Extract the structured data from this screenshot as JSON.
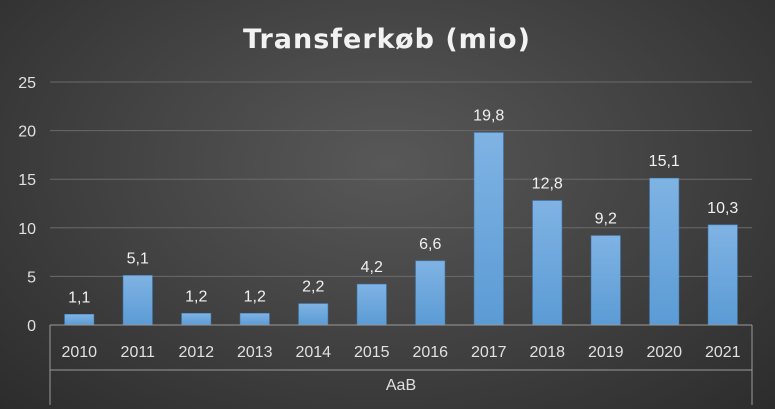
{
  "chart_data": {
    "type": "bar",
    "title": "Transferkøb (mio)",
    "group_label": "AaB",
    "categories": [
      "2010",
      "2011",
      "2012",
      "2013",
      "2014",
      "2015",
      "2016",
      "2017",
      "2018",
      "2019",
      "2020",
      "2021"
    ],
    "series": [
      {
        "values": [
          1.1,
          5.1,
          1.2,
          1.2,
          2.2,
          4.2,
          6.6,
          19.8,
          12.8,
          9.2,
          15.1,
          10.3
        ]
      }
    ],
    "data_labels": [
      "1,1",
      "5,1",
      "1,2",
      "1,2",
      "2,2",
      "4,2",
      "6,6",
      "19,8",
      "12,8",
      "9,2",
      "15,1",
      "10,3"
    ],
    "y_ticks": [
      "0",
      "5",
      "10",
      "15",
      "20",
      "25"
    ],
    "ylim": [
      0,
      25
    ],
    "grid": true,
    "legend": "none",
    "colors": {
      "bar": "#5b9bd5",
      "bar_light": "#7fb3e3",
      "grid": "#6a6a6a",
      "axis": "#9a9a9a"
    }
  }
}
